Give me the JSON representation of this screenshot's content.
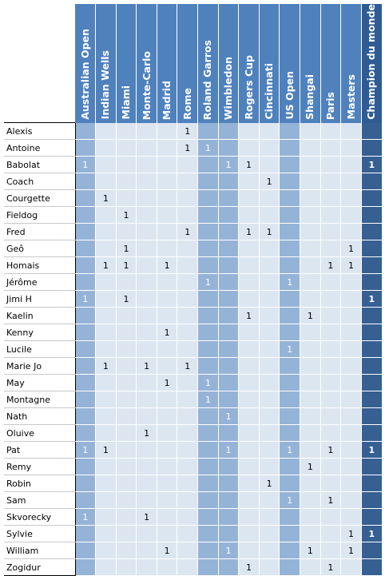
{
  "columns": [
    {
      "label": "Australian Open",
      "kind": "gs"
    },
    {
      "label": "Indian Wells",
      "kind": "m"
    },
    {
      "label": "Miami",
      "kind": "m"
    },
    {
      "label": "Monte-Carlo",
      "kind": "m"
    },
    {
      "label": "Madrid",
      "kind": "m"
    },
    {
      "label": "Rome",
      "kind": "m"
    },
    {
      "label": "Roland Garros",
      "kind": "gs"
    },
    {
      "label": "Wimbledon",
      "kind": "gs"
    },
    {
      "label": "Rogers Cup",
      "kind": "m"
    },
    {
      "label": "Cincinnati",
      "kind": "m"
    },
    {
      "label": "US Open",
      "kind": "gs"
    },
    {
      "label": "Shangai",
      "kind": "m"
    },
    {
      "label": "Paris",
      "kind": "m"
    },
    {
      "label": "Masters",
      "kind": "m"
    },
    {
      "label": "Champion du monde",
      "kind": "champ"
    }
  ],
  "rows": [
    {
      "name": "Alexis",
      "cells": [
        "",
        "",
        "",
        "",
        "",
        "1",
        "",
        "",
        "",
        "",
        "",
        "",
        "",
        "",
        ""
      ]
    },
    {
      "name": "Antoine",
      "cells": [
        "",
        "",
        "",
        "",
        "",
        "1",
        "1",
        "",
        "",
        "",
        "",
        "",
        "",
        "",
        ""
      ]
    },
    {
      "name": "Babolat",
      "cells": [
        "1",
        "",
        "",
        "",
        "",
        "",
        "",
        "1",
        "1",
        "",
        "",
        "",
        "",
        "",
        "1"
      ]
    },
    {
      "name": "Coach",
      "cells": [
        "",
        "",
        "",
        "",
        "",
        "",
        "",
        "",
        "",
        "1",
        "",
        "",
        "",
        "",
        ""
      ]
    },
    {
      "name": "Courgette",
      "cells": [
        "",
        "1",
        "",
        "",
        "",
        "",
        "",
        "",
        "",
        "",
        "",
        "",
        "",
        "",
        ""
      ]
    },
    {
      "name": "Fieldog",
      "cells": [
        "",
        "",
        "1",
        "",
        "",
        "",
        "",
        "",
        "",
        "",
        "",
        "",
        "",
        "",
        ""
      ]
    },
    {
      "name": "Fred",
      "cells": [
        "",
        "",
        "",
        "",
        "",
        "1",
        "",
        "",
        "1",
        "1",
        "",
        "",
        "",
        "",
        ""
      ]
    },
    {
      "name": "Geô",
      "cells": [
        "",
        "",
        "1",
        "",
        "",
        "",
        "",
        "",
        "",
        "",
        "",
        "",
        "",
        "1",
        ""
      ]
    },
    {
      "name": "Homais",
      "cells": [
        "",
        "1",
        "1",
        "",
        "1",
        "",
        "",
        "",
        "",
        "",
        "",
        "",
        "1",
        "1",
        ""
      ]
    },
    {
      "name": "Jérôme",
      "cells": [
        "",
        "",
        "",
        "",
        "",
        "",
        "1",
        "",
        "",
        "",
        "1",
        "",
        "",
        "",
        ""
      ]
    },
    {
      "name": "Jimi H",
      "cells": [
        "1",
        "",
        "1",
        "",
        "",
        "",
        "",
        "",
        "",
        "",
        "",
        "",
        "",
        "",
        "1"
      ]
    },
    {
      "name": "Kaelin",
      "cells": [
        "",
        "",
        "",
        "",
        "",
        "",
        "",
        "",
        "1",
        "",
        "",
        "1",
        "",
        "",
        ""
      ]
    },
    {
      "name": "Kenny",
      "cells": [
        "",
        "",
        "",
        "",
        "1",
        "",
        "",
        "",
        "",
        "",
        "",
        "",
        "",
        "",
        ""
      ]
    },
    {
      "name": "Lucile",
      "cells": [
        "",
        "",
        "",
        "",
        "",
        "",
        "",
        "",
        "",
        "",
        "1",
        "",
        "",
        "",
        ""
      ]
    },
    {
      "name": "Marie Jo",
      "cells": [
        "",
        "1",
        "",
        "1",
        "",
        "1",
        "",
        "",
        "",
        "",
        "",
        "",
        "",
        "",
        ""
      ]
    },
    {
      "name": "May",
      "cells": [
        "",
        "",
        "",
        "",
        "1",
        "",
        "1",
        "",
        "",
        "",
        "",
        "",
        "",
        "",
        ""
      ]
    },
    {
      "name": "Montagne",
      "cells": [
        "",
        "",
        "",
        "",
        "",
        "",
        "1",
        "",
        "",
        "",
        "",
        "",
        "",
        "",
        ""
      ]
    },
    {
      "name": "Nath",
      "cells": [
        "",
        "",
        "",
        "",
        "",
        "",
        "",
        "1",
        "",
        "",
        "",
        "",
        "",
        "",
        ""
      ]
    },
    {
      "name": "Oluive",
      "cells": [
        "",
        "",
        "",
        "1",
        "",
        "",
        "",
        "",
        "",
        "",
        "",
        "",
        "",
        "",
        ""
      ]
    },
    {
      "name": "Pat",
      "cells": [
        "1",
        "1",
        "",
        "",
        "",
        "",
        "",
        "1",
        "",
        "",
        "1",
        "",
        "1",
        "",
        "1"
      ]
    },
    {
      "name": "Remy",
      "cells": [
        "",
        "",
        "",
        "",
        "",
        "",
        "",
        "",
        "",
        "",
        "",
        "1",
        "",
        "",
        ""
      ]
    },
    {
      "name": "Robin",
      "cells": [
        "",
        "",
        "",
        "",
        "",
        "",
        "",
        "",
        "",
        "1",
        "",
        "",
        "",
        "",
        ""
      ]
    },
    {
      "name": "Sam",
      "cells": [
        "",
        "",
        "",
        "",
        "",
        "",
        "",
        "",
        "",
        "",
        "1",
        "",
        "1",
        "",
        ""
      ]
    },
    {
      "name": "Skvorecky",
      "cells": [
        "1",
        "",
        "",
        "1",
        "",
        "",
        "",
        "",
        "",
        "",
        "",
        "",
        "",
        "",
        ""
      ]
    },
    {
      "name": "Sylvie",
      "cells": [
        "",
        "",
        "",
        "",
        "",
        "",
        "",
        "",
        "",
        "",
        "",
        "",
        "",
        "1",
        "1"
      ]
    },
    {
      "name": "William",
      "cells": [
        "",
        "",
        "",
        "",
        "1",
        "",
        "",
        "1",
        "",
        "",
        "",
        "1",
        "",
        "1",
        ""
      ]
    },
    {
      "name": "Zogidur",
      "cells": [
        "",
        "",
        "",
        "",
        "",
        "",
        "",
        "",
        "1",
        "",
        "",
        "",
        "1",
        "",
        ""
      ]
    }
  ]
}
